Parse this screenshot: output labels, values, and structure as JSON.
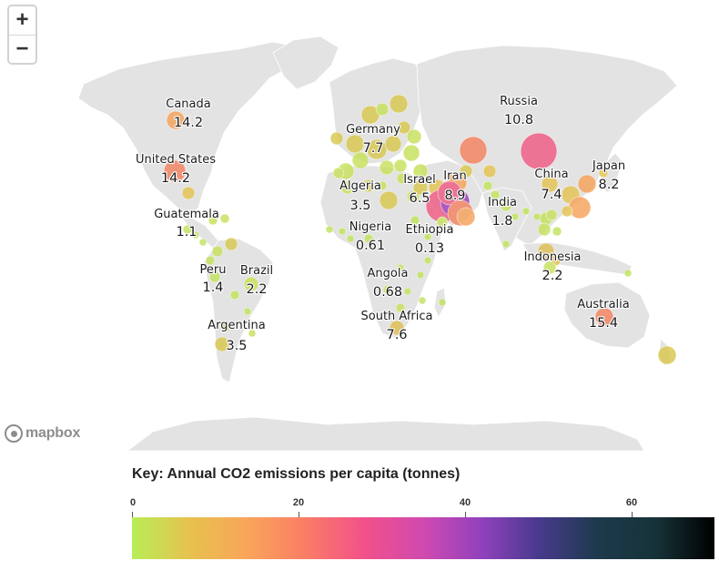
{
  "zoom": {
    "in_label": "+",
    "out_label": "−"
  },
  "attribution": {
    "logo_text": "mapbox"
  },
  "key": {
    "title": "Key: Annual CO2 emissions per capita (tonnes)",
    "ticks": [
      "0",
      "20",
      "40",
      "60"
    ],
    "scale_min": 0,
    "scale_max": 70,
    "gradient": [
      "#b8ee58",
      "#e7c14e",
      "#f9a45a",
      "#fa7c66",
      "#f2508a",
      "#d04ab0",
      "#9141bd",
      "#473a8c",
      "#1d3a4c",
      "#163238",
      "#000000"
    ]
  },
  "countries": [
    {
      "name": "Canada",
      "value": "14.2"
    },
    {
      "name": "United States",
      "value": "14.2"
    },
    {
      "name": "Guatemala",
      "value": "1.1"
    },
    {
      "name": "Peru",
      "value": "1.4"
    },
    {
      "name": "Brazil",
      "value": "2.2"
    },
    {
      "name": "Argentina",
      "value": "3.5"
    },
    {
      "name": "Germany",
      "value": "7.7"
    },
    {
      "name": "Algeria",
      "value": "3.5"
    },
    {
      "name": "Nigeria",
      "value": "0.61"
    },
    {
      "name": "Angola",
      "value": "0.68"
    },
    {
      "name": "South Africa",
      "value": "7.6"
    },
    {
      "name": "Israel",
      "value": "6.5"
    },
    {
      "name": "Iran",
      "value": "8.9"
    },
    {
      "name": "Ethiopia",
      "value": "0.13"
    },
    {
      "name": "India",
      "value": "1.8"
    },
    {
      "name": "Russia",
      "value": "10.8"
    },
    {
      "name": "China",
      "value": "7.4"
    },
    {
      "name": "Japan",
      "value": "8.2"
    },
    {
      "name": "Indonesia",
      "value": "2.2"
    },
    {
      "name": "Australia",
      "value": "15.4"
    }
  ],
  "bubble_colors": {
    "low": "#c3e35d",
    "mid_low": "#d9c84f",
    "mid": "#f6a35a",
    "high": "#f48260",
    "very_high": "#f05b84",
    "extreme": "#9d3fbb"
  }
}
